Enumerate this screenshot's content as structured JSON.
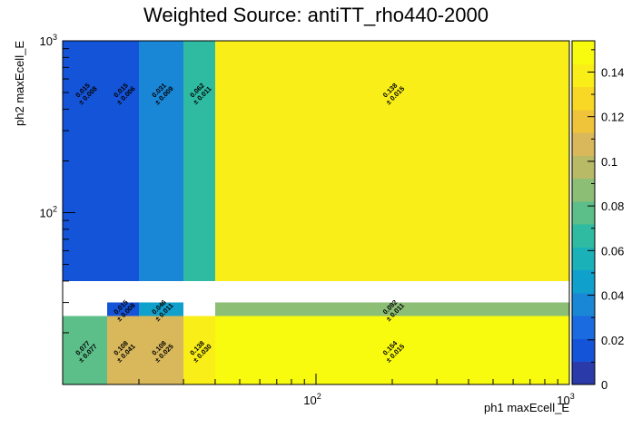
{
  "chart_data": {
    "type": "heatmap",
    "title": "Weighted Source: antiTT_rho440-2000",
    "xlabel": "ph1 maxEcell_E",
    "ylabel": "ph2 maxEcell_E",
    "x_scale": "log",
    "y_scale": "log",
    "xlim": [
      10,
      1000
    ],
    "ylim": [
      10,
      1000
    ],
    "x_edges": [
      10,
      15,
      20,
      30,
      40,
      1000
    ],
    "y_edges": [
      10,
      25,
      30,
      40,
      1000
    ],
    "x_major_ticks": [
      {
        "base": "10",
        "exp": "2",
        "value": 100
      },
      {
        "base": "10",
        "exp": "3",
        "value": 1000
      }
    ],
    "y_major_ticks": [
      {
        "base": "10",
        "exp": "2",
        "value": 100
      },
      {
        "base": "10",
        "exp": "3",
        "value": 1000
      }
    ],
    "colorbar": {
      "min": 0,
      "max": 0.154,
      "ticks": [
        0,
        0.02,
        0.04,
        0.06,
        0.08,
        0.1,
        0.12,
        0.14
      ],
      "tick_labels": [
        "0",
        "0.02",
        "0.04",
        "0.06",
        "0.08",
        "0.1",
        "0.12",
        "0.14"
      ]
    },
    "cells": [
      {
        "xi": 0,
        "yi": 0,
        "value": 0.077,
        "label": "0.077",
        "error": "± 0.077"
      },
      {
        "xi": 1,
        "yi": 0,
        "value": 0.108,
        "label": "0.108",
        "error": "± 0.041"
      },
      {
        "xi": 2,
        "yi": 0,
        "value": 0.108,
        "label": "0.108",
        "error": "± 0.025"
      },
      {
        "xi": 3,
        "yi": 0,
        "value": 0.138,
        "label": "0.138",
        "error": "± 0.030"
      },
      {
        "xi": 4,
        "yi": 0,
        "value": 0.154,
        "label": "0.154",
        "error": "± 0.015"
      },
      {
        "xi": 1,
        "yi": 1,
        "value": 0.015,
        "label": "0.015",
        "error": "± 0.008"
      },
      {
        "xi": 2,
        "yi": 1,
        "value": 0.046,
        "label": "0.046",
        "error": "± 0.011"
      },
      {
        "xi": 4,
        "yi": 1,
        "value": 0.092,
        "label": "0.092",
        "error": "± 0.011"
      },
      {
        "xi": 0,
        "yi": 3,
        "value": 0.015,
        "label": "0.015",
        "error": "± 0.008"
      },
      {
        "xi": 1,
        "yi": 3,
        "value": 0.015,
        "label": "0.015",
        "error": "± 0.006"
      },
      {
        "xi": 2,
        "yi": 3,
        "value": 0.031,
        "label": "0.031",
        "error": "± 0.009"
      },
      {
        "xi": 3,
        "yi": 3,
        "value": 0.062,
        "label": "0.062",
        "error": "± 0.011"
      },
      {
        "xi": 4,
        "yi": 3,
        "value": 0.138,
        "label": "0.138",
        "error": "± 0.015"
      }
    ],
    "palette": [
      "#2a3aa8",
      "#1454d9",
      "#1a6ae0",
      "#1a86d6",
      "#10a0cc",
      "#1ab2b8",
      "#2ebba1",
      "#5cbe88",
      "#8cbe76",
      "#b8ba66",
      "#d8b85a",
      "#f0c43a",
      "#f8d824",
      "#f9ee18",
      "#f9fb0e"
    ]
  }
}
